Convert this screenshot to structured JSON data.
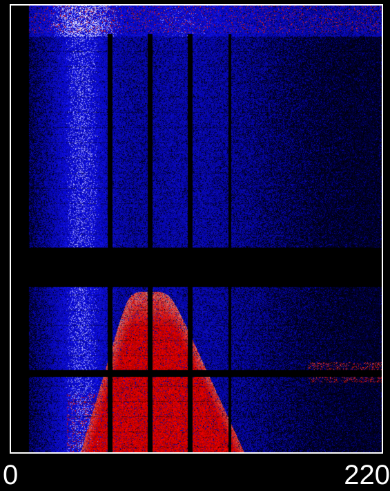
{
  "chart_data": {
    "type": "heatmap",
    "title": "",
    "xlabel": "",
    "ylabel": "",
    "x_ticks": [
      "0",
      "220"
    ],
    "xlim": [
      0,
      220
    ],
    "colormap": {
      "low": "#000000",
      "mid_negative": "#1a1acc",
      "neutral": "#ffffff",
      "positive": "#ff0000",
      "high": "#aa0000"
    },
    "grid": false,
    "legend": "none"
  }
}
